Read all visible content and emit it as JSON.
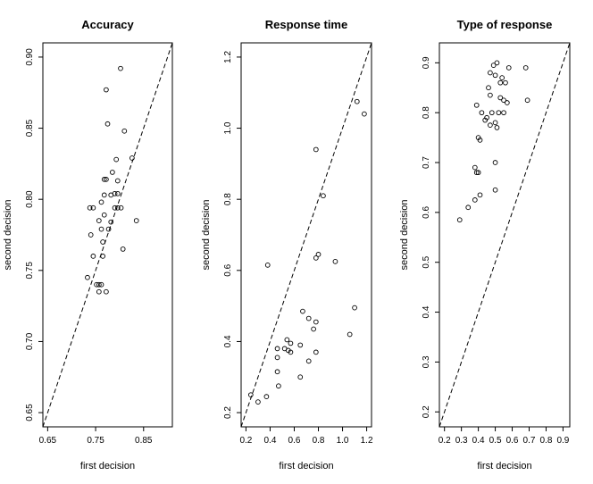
{
  "chart_data": [
    {
      "type": "scatter",
      "title": "Accuracy",
      "xlabel": "first decision",
      "ylabel": "second decision",
      "xlim": [
        0.64,
        0.91
      ],
      "ylim": [
        0.64,
        0.91
      ],
      "xticks": [
        0.65,
        0.75,
        0.85
      ],
      "yticks": [
        0.65,
        0.7,
        0.75,
        0.8,
        0.85,
        0.9
      ],
      "xtick_labels": [
        "0.65",
        "0.75",
        "0.85"
      ],
      "ytick_labels": [
        "0.65",
        "0.70",
        "0.75",
        "0.80",
        "0.85",
        "0.90"
      ],
      "diagonal": true,
      "points": [
        [
          0.802,
          0.892
        ],
        [
          0.772,
          0.877
        ],
        [
          0.775,
          0.853
        ],
        [
          0.81,
          0.848
        ],
        [
          0.826,
          0.829
        ],
        [
          0.793,
          0.828
        ],
        [
          0.785,
          0.819
        ],
        [
          0.768,
          0.814
        ],
        [
          0.772,
          0.814
        ],
        [
          0.796,
          0.813
        ],
        [
          0.79,
          0.804
        ],
        [
          0.796,
          0.804
        ],
        [
          0.768,
          0.803
        ],
        [
          0.782,
          0.803
        ],
        [
          0.762,
          0.798
        ],
        [
          0.738,
          0.794
        ],
        [
          0.745,
          0.794
        ],
        [
          0.79,
          0.794
        ],
        [
          0.796,
          0.794
        ],
        [
          0.803,
          0.794
        ],
        [
          0.768,
          0.789
        ],
        [
          0.757,
          0.785
        ],
        [
          0.782,
          0.784
        ],
        [
          0.835,
          0.785
        ],
        [
          0.762,
          0.779
        ],
        [
          0.777,
          0.779
        ],
        [
          0.74,
          0.775
        ],
        [
          0.765,
          0.77
        ],
        [
          0.807,
          0.765
        ],
        [
          0.765,
          0.76
        ],
        [
          0.745,
          0.76
        ],
        [
          0.733,
          0.745
        ],
        [
          0.752,
          0.74
        ],
        [
          0.757,
          0.74
        ],
        [
          0.762,
          0.74
        ],
        [
          0.757,
          0.735
        ],
        [
          0.772,
          0.735
        ]
      ]
    },
    {
      "type": "scatter",
      "title": "Response time",
      "xlabel": "first decision",
      "ylabel": "second decision",
      "xlim": [
        0.16,
        1.24
      ],
      "ylim": [
        0.16,
        1.24
      ],
      "xticks": [
        0.2,
        0.4,
        0.6,
        0.8,
        1.0,
        1.2
      ],
      "yticks": [
        0.2,
        0.4,
        0.6,
        0.8,
        1.0,
        1.2
      ],
      "xtick_labels": [
        "0.2",
        "0.4",
        "0.6",
        "0.8",
        "1.0",
        "1.2"
      ],
      "ytick_labels": [
        "0.2",
        "0.4",
        "0.6",
        "0.8",
        "1.0",
        "1.2"
      ],
      "diagonal": true,
      "points": [
        [
          1.12,
          1.075
        ],
        [
          1.18,
          1.04
        ],
        [
          0.78,
          0.94
        ],
        [
          0.84,
          0.81
        ],
        [
          0.8,
          0.645
        ],
        [
          0.78,
          0.635
        ],
        [
          0.94,
          0.625
        ],
        [
          0.38,
          0.615
        ],
        [
          1.1,
          0.495
        ],
        [
          0.67,
          0.485
        ],
        [
          0.72,
          0.465
        ],
        [
          0.78,
          0.455
        ],
        [
          0.76,
          0.435
        ],
        [
          1.06,
          0.42
        ],
        [
          0.54,
          0.405
        ],
        [
          0.57,
          0.395
        ],
        [
          0.65,
          0.39
        ],
        [
          0.46,
          0.38
        ],
        [
          0.52,
          0.38
        ],
        [
          0.55,
          0.375
        ],
        [
          0.57,
          0.37
        ],
        [
          0.78,
          0.37
        ],
        [
          0.46,
          0.355
        ],
        [
          0.72,
          0.345
        ],
        [
          0.46,
          0.315
        ],
        [
          0.65,
          0.3
        ],
        [
          0.47,
          0.275
        ],
        [
          0.24,
          0.25
        ],
        [
          0.37,
          0.245
        ],
        [
          0.3,
          0.23
        ]
      ]
    },
    {
      "type": "scatter",
      "title": "Type of response",
      "xlabel": "first decision",
      "ylabel": "second decision",
      "xlim": [
        0.17,
        0.94
      ],
      "ylim": [
        0.17,
        0.94
      ],
      "xticks": [
        0.2,
        0.3,
        0.4,
        0.5,
        0.6,
        0.7,
        0.8,
        0.9
      ],
      "yticks": [
        0.2,
        0.3,
        0.4,
        0.5,
        0.6,
        0.7,
        0.8,
        0.9
      ],
      "xtick_labels": [
        "0.2",
        "0.3",
        "0.4",
        "0.5",
        "0.6",
        "0.7",
        "0.8",
        "0.9"
      ],
      "ytick_labels": [
        "0.2",
        "0.3",
        "0.4",
        "0.5",
        "0.6",
        "0.7",
        "0.8",
        "0.9"
      ],
      "diagonal": true,
      "points": [
        [
          0.51,
          0.9
        ],
        [
          0.49,
          0.895
        ],
        [
          0.58,
          0.89
        ],
        [
          0.68,
          0.89
        ],
        [
          0.47,
          0.88
        ],
        [
          0.5,
          0.875
        ],
        [
          0.54,
          0.87
        ],
        [
          0.53,
          0.86
        ],
        [
          0.56,
          0.86
        ],
        [
          0.46,
          0.85
        ],
        [
          0.47,
          0.835
        ],
        [
          0.53,
          0.83
        ],
        [
          0.55,
          0.825
        ],
        [
          0.69,
          0.825
        ],
        [
          0.57,
          0.82
        ],
        [
          0.39,
          0.815
        ],
        [
          0.42,
          0.8
        ],
        [
          0.48,
          0.8
        ],
        [
          0.52,
          0.8
        ],
        [
          0.55,
          0.8
        ],
        [
          0.45,
          0.79
        ],
        [
          0.44,
          0.785
        ],
        [
          0.5,
          0.78
        ],
        [
          0.47,
          0.775
        ],
        [
          0.51,
          0.77
        ],
        [
          0.4,
          0.75
        ],
        [
          0.41,
          0.745
        ],
        [
          0.5,
          0.7
        ],
        [
          0.38,
          0.69
        ],
        [
          0.39,
          0.68
        ],
        [
          0.4,
          0.68
        ],
        [
          0.5,
          0.645
        ],
        [
          0.41,
          0.635
        ],
        [
          0.38,
          0.625
        ],
        [
          0.34,
          0.61
        ],
        [
          0.29,
          0.585
        ]
      ]
    }
  ]
}
